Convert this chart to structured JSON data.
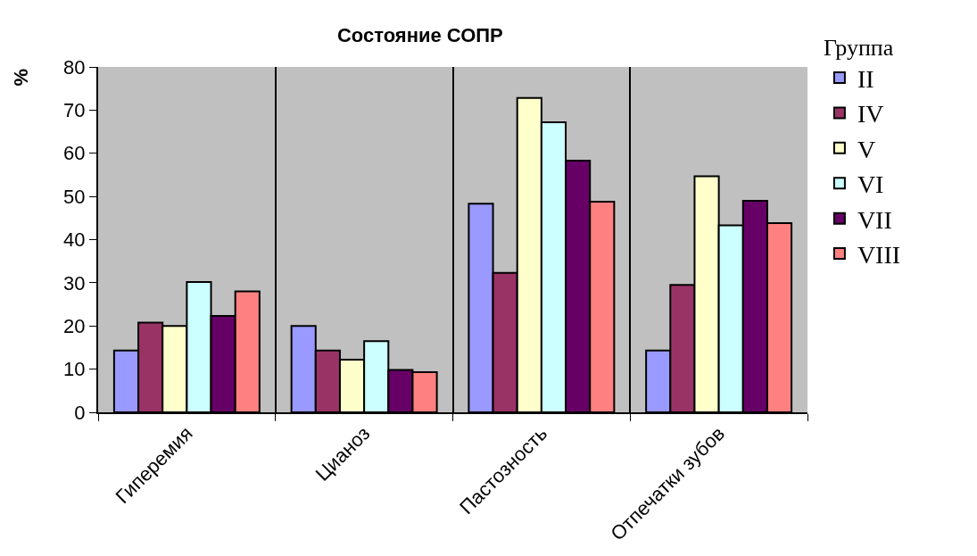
{
  "chart_data": {
    "type": "bar",
    "title": "Состояние СОПР",
    "ylabel": "%",
    "legend_title": "Группа",
    "categories": [
      "Гиперемия",
      "Цианоз",
      "Пастозность",
      "Отпечатки зубов"
    ],
    "series": [
      {
        "name": "II",
        "color": "#9999ff",
        "values": [
          14.3,
          20,
          48.3,
          14.3
        ]
      },
      {
        "name": "IV",
        "color": "#993366",
        "values": [
          20.8,
          14.3,
          32.3,
          29.5
        ]
      },
      {
        "name": "V",
        "color": "#ffffcc",
        "values": [
          20,
          12.2,
          72.8,
          54.7
        ]
      },
      {
        "name": "VI",
        "color": "#ccffff",
        "values": [
          30.2,
          16.5,
          67.2,
          43.3
        ]
      },
      {
        "name": "VII",
        "color": "#660066",
        "values": [
          22.3,
          9.8,
          58.3,
          49
        ]
      },
      {
        "name": "VIII",
        "color": "#ff8080",
        "values": [
          28,
          9.3,
          48.8,
          43.8
        ]
      }
    ],
    "ylim": [
      0,
      80
    ],
    "yticks": [
      0,
      10,
      20,
      30,
      40,
      50,
      60,
      70,
      80
    ],
    "grid": "x",
    "legend": "right"
  }
}
